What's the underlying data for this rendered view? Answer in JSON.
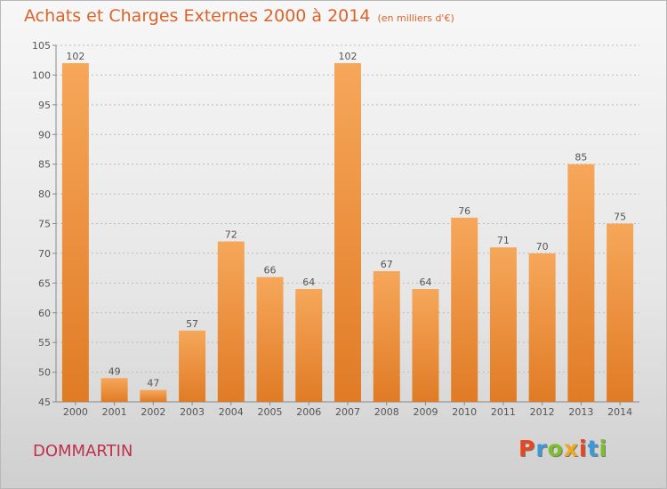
{
  "header": {
    "title": "Achats et Charges Externes 2000 à 2014",
    "unit": "(en milliers d'€)"
  },
  "footer": {
    "city": "DOMMARTIN",
    "logo_text": "Proxiti",
    "logo_colors": [
      "#e8461e",
      "#3b9ad9",
      "#7cbf2b",
      "#f0a81c",
      "#e8461e",
      "#3b9ad9",
      "#7cbf2b"
    ]
  },
  "colors": {
    "bar_light": "#f6a75a",
    "bar_dark": "#e07b25",
    "grid": "#bbbbbb",
    "axis_text": "#555555",
    "title": "#d9642a",
    "city": "#c0304a"
  },
  "chart_data": {
    "type": "bar",
    "categories": [
      "2000",
      "2001",
      "2002",
      "2003",
      "2004",
      "2005",
      "2006",
      "2007",
      "2008",
      "2009",
      "2010",
      "2011",
      "2012",
      "2013",
      "2014"
    ],
    "values": [
      102,
      49,
      47,
      57,
      72,
      66,
      64,
      102,
      67,
      64,
      76,
      71,
      70,
      85,
      75
    ],
    "title": "Achats et Charges Externes 2000 à 2014",
    "ylim": [
      45,
      105
    ],
    "yticks": [
      45,
      50,
      55,
      60,
      65,
      70,
      75,
      80,
      85,
      90,
      95,
      100,
      105
    ],
    "grid": true,
    "legend": "none"
  }
}
